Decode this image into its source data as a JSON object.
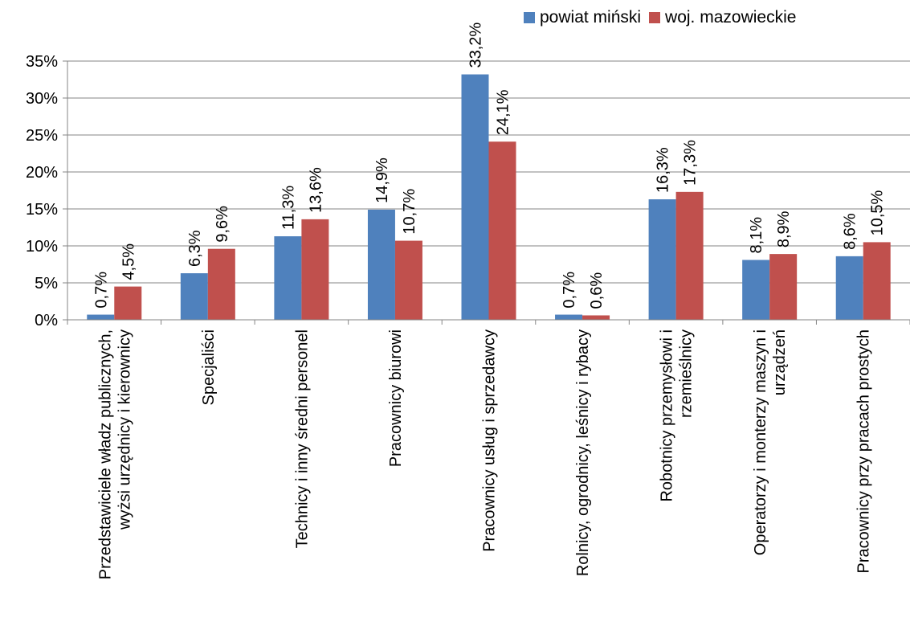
{
  "chart_data": {
    "type": "bar",
    "categories": [
      [
        "Przedstawiciele władz publicznych,",
        "wyżsi urzędnicy i kierownicy"
      ],
      [
        "Specjaliści"
      ],
      [
        "Technicy i inny średni personel"
      ],
      [
        "Pracownicy biurowi"
      ],
      [
        "Pracownicy usług i sprzedawcy"
      ],
      [
        "Rolnicy, ogrodnicy, leśnicy i rybacy"
      ],
      [
        "Robotnicy przemysłowi i",
        "rzemieślnicy"
      ],
      [
        "Operatorzy i monterzy maszyn i",
        "urządzeń"
      ],
      [
        "Pracownicy przy pracach prostych"
      ]
    ],
    "series": [
      {
        "name": "powiat miński",
        "color": "#4f81bd",
        "values": [
          0.7,
          6.3,
          11.3,
          14.9,
          33.2,
          0.7,
          16.3,
          8.1,
          8.6
        ],
        "labels": [
          "0,7%",
          "6,3%",
          "11,3%",
          "14,9%",
          "33,2%",
          "0,7%",
          "16,3%",
          "8,1%",
          "8,6%"
        ]
      },
      {
        "name": "woj. mazowieckie",
        "color": "#c0504d",
        "values": [
          4.5,
          9.6,
          13.6,
          10.7,
          24.1,
          0.6,
          17.3,
          8.9,
          10.5
        ],
        "labels": [
          "4,5%",
          "9,6%",
          "13,6%",
          "10,7%",
          "24,1%",
          "0,6%",
          "17,3%",
          "8,9%",
          "10,5%"
        ]
      }
    ],
    "yticks": [
      0,
      5,
      10,
      15,
      20,
      25,
      30,
      35
    ],
    "ytick_labels": [
      "0%",
      "5%",
      "10%",
      "15%",
      "20%",
      "25%",
      "30%",
      "35%"
    ],
    "ylim": [
      0,
      35
    ],
    "grid": true,
    "legend": "top-right"
  }
}
